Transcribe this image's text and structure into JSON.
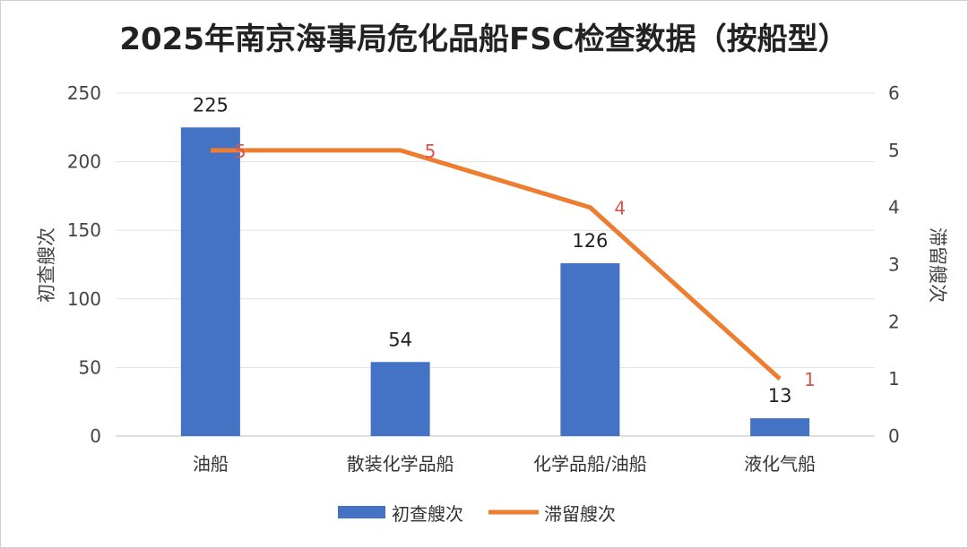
{
  "chart_data": {
    "type": "bar",
    "title": "2025年南京海事局危化品船FSC检查数据（按船型）",
    "categories": [
      "油船",
      "散装化学品船",
      "化学品船/油船",
      "液化气船"
    ],
    "series": [
      {
        "name": "初查艘次",
        "type": "bar",
        "axis": "left",
        "values": [
          225,
          54,
          126,
          13
        ],
        "color": "#4472C4"
      },
      {
        "name": "滞留艘次",
        "type": "line",
        "axis": "right",
        "values": [
          5,
          5,
          4,
          1
        ],
        "color": "#ED7D31"
      }
    ],
    "ylabel": "初查艘次",
    "ylabel_right": "滞留艘次",
    "ylim": [
      0,
      250
    ],
    "ylim_right": [
      0,
      6
    ],
    "yticks": [
      "0",
      "50",
      "100",
      "150",
      "200",
      "250"
    ],
    "yticks_right": [
      "0",
      "1",
      "2",
      "3",
      "4",
      "5",
      "6"
    ],
    "grid": true,
    "legend": "bottom",
    "line_label_color": "#D9534F"
  }
}
